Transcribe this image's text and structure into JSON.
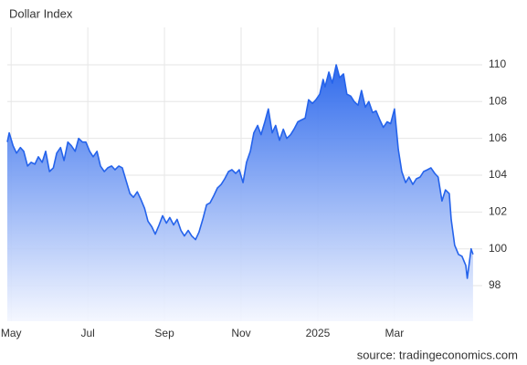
{
  "chart_data": {
    "type": "area",
    "title": "Dollar Index",
    "source": "source: tradingeconomics.com",
    "color": "#2563eb",
    "grid": true,
    "x": [
      -0.1,
      -0.05,
      0.05,
      0.14,
      0.24,
      0.33,
      0.43,
      0.52,
      0.62,
      0.71,
      0.81,
      0.9,
      1.0,
      1.1,
      1.19,
      1.29,
      1.38,
      1.48,
      1.57,
      1.67,
      1.76,
      1.86,
      1.95,
      2.05,
      2.14,
      2.24,
      2.33,
      2.43,
      2.52,
      2.62,
      2.71,
      2.81,
      2.9,
      3.0,
      3.1,
      3.19,
      3.29,
      3.38,
      3.48,
      3.57,
      3.67,
      3.76,
      3.86,
      3.95,
      4.05,
      4.14,
      4.24,
      4.33,
      4.43,
      4.52,
      4.62,
      4.71,
      4.81,
      4.9,
      5.0,
      5.1,
      5.19,
      5.29,
      5.38,
      5.48,
      5.57,
      5.67,
      5.76,
      5.86,
      5.95,
      6.05,
      6.14,
      6.24,
      6.33,
      6.43,
      6.52,
      6.62,
      6.71,
      6.81,
      6.9,
      7.0,
      7.1,
      7.19,
      7.29,
      7.38,
      7.48,
      7.57,
      7.67,
      7.76,
      7.86,
      7.95,
      8.05,
      8.14,
      8.19,
      8.29,
      8.38,
      8.48,
      8.57,
      8.67,
      8.76,
      8.86,
      8.95,
      9.05,
      9.14,
      9.24,
      9.33,
      9.43,
      9.52,
      9.62,
      9.71,
      9.81,
      9.9,
      10.0,
      10.1,
      10.19,
      10.29,
      10.38,
      10.48,
      10.57,
      10.67,
      10.76,
      10.86,
      10.95,
      11.05,
      11.14,
      11.24,
      11.33,
      11.43,
      11.48,
      11.57,
      11.67,
      11.76,
      11.86,
      11.9,
      11.95,
      12.0,
      12.05
    ],
    "values": [
      105.8,
      106.3,
      105.6,
      105.2,
      105.5,
      105.3,
      104.5,
      104.7,
      104.6,
      105.0,
      104.7,
      105.3,
      104.2,
      104.4,
      105.2,
      105.5,
      104.8,
      105.8,
      105.6,
      105.3,
      106.0,
      105.8,
      105.8,
      105.3,
      105.0,
      105.3,
      104.5,
      104.2,
      104.4,
      104.5,
      104.3,
      104.5,
      104.4,
      103.7,
      103.0,
      102.8,
      103.1,
      102.7,
      102.2,
      101.5,
      101.2,
      100.8,
      101.3,
      101.8,
      101.4,
      101.7,
      101.3,
      101.6,
      101.0,
      100.7,
      101.0,
      100.7,
      100.5,
      100.9,
      101.6,
      102.4,
      102.5,
      102.9,
      103.3,
      103.5,
      103.8,
      104.2,
      104.3,
      104.1,
      104.3,
      103.6,
      104.7,
      105.3,
      106.3,
      106.7,
      106.2,
      106.9,
      107.6,
      106.3,
      106.7,
      105.9,
      106.5,
      106.0,
      106.2,
      106.5,
      106.9,
      107.0,
      107.1,
      108.1,
      107.9,
      108.1,
      108.4,
      109.2,
      108.8,
      109.6,
      109.0,
      110.0,
      109.3,
      109.5,
      108.4,
      108.3,
      108.0,
      107.8,
      108.6,
      107.7,
      108.0,
      107.4,
      107.5,
      107.0,
      106.6,
      106.9,
      106.8,
      107.6,
      105.4,
      104.2,
      103.6,
      103.9,
      103.5,
      103.8,
      103.9,
      104.2,
      104.3,
      104.4,
      104.1,
      103.9,
      102.6,
      103.2,
      103.0,
      101.6,
      100.2,
      99.7,
      99.6,
      99.1,
      98.4,
      99.2,
      100.0,
      99.7
    ],
    "xlim": [
      -0.1,
      12.29
    ],
    "xticks": [
      {
        "value": 0,
        "label": "May"
      },
      {
        "value": 2,
        "label": "Jul"
      },
      {
        "value": 4,
        "label": "Sep"
      },
      {
        "value": 6,
        "label": "Nov"
      },
      {
        "value": 8,
        "label": "2025"
      },
      {
        "value": 10,
        "label": "Mar"
      }
    ],
    "ylim": [
      96.07,
      112.03
    ],
    "yticks": [
      98,
      100,
      102,
      104,
      106,
      108,
      110
    ]
  }
}
